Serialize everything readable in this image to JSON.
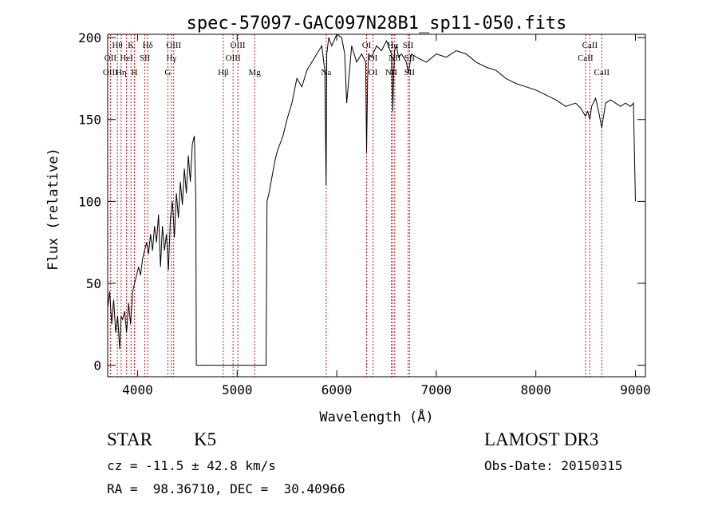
{
  "chart_data": {
    "type": "line",
    "title": "spec-57097-GAC097N28B1_sp11-050.fits",
    "xlabel": "Wavelength (Å)",
    "ylabel": "Flux (relative)",
    "xlim": [
      3700,
      9100
    ],
    "ylim": [
      -7,
      202
    ],
    "xticks": [
      4000,
      5000,
      6000,
      7000,
      8000,
      9000
    ],
    "yticks": [
      0,
      50,
      100,
      150,
      200
    ],
    "grid": false,
    "line_color": "#000000",
    "marker_color": "#cc0000",
    "series": [
      {
        "x": [
          3700,
          3720,
          3740,
          3760,
          3780,
          3800,
          3820,
          3835,
          3850,
          3870,
          3890,
          3910,
          3930,
          3950,
          3970,
          3990,
          4010,
          4030,
          4050,
          4070,
          4090,
          4110,
          4130,
          4150,
          4170,
          4190,
          4210,
          4230,
          4250,
          4270,
          4290,
          4310,
          4330,
          4350,
          4370,
          4390,
          4410,
          4430,
          4450,
          4470,
          4490,
          4510,
          4530,
          4550,
          4570,
          4585,
          4590,
          4600,
          4700,
          4800,
          4900,
          5000,
          5100,
          5200,
          5290,
          5300,
          5320,
          5350,
          5380,
          5400,
          5430,
          5460,
          5500,
          5550,
          5600,
          5650,
          5700,
          5750,
          5800,
          5850,
          5880,
          5894,
          5900,
          5920,
          5950,
          6000,
          6050,
          6080,
          6100,
          6150,
          6200,
          6250,
          6290,
          6300,
          6310,
          6320,
          6350,
          6400,
          6450,
          6500,
          6550,
          6563,
          6580,
          6600,
          6620,
          6650,
          6700,
          6720,
          6750,
          6800,
          6900,
          7000,
          7100,
          7200,
          7300,
          7400,
          7500,
          7600,
          7700,
          7800,
          7900,
          8000,
          8100,
          8200,
          8300,
          8400,
          8450,
          8498,
          8520,
          8542,
          8560,
          8600,
          8630,
          8662,
          8700,
          8750,
          8800,
          8850,
          8900,
          8950,
          8980,
          9000
        ],
        "y": [
          35,
          45,
          25,
          40,
          20,
          30,
          10,
          30,
          28,
          33,
          20,
          38,
          25,
          45,
          50,
          55,
          60,
          55,
          65,
          70,
          75,
          68,
          80,
          70,
          85,
          75,
          92,
          60,
          85,
          70,
          80,
          58,
          90,
          100,
          78,
          105,
          90,
          112,
          98,
          120,
          105,
          128,
          112,
          135,
          140,
          100,
          0,
          0,
          0,
          0,
          0,
          0,
          0,
          0,
          0,
          100,
          105,
          115,
          125,
          130,
          135,
          140,
          150,
          160,
          175,
          170,
          180,
          185,
          190,
          195,
          180,
          110,
          190,
          200,
          195,
          205,
          200,
          190,
          160,
          195,
          185,
          190,
          185,
          130,
          175,
          190,
          188,
          195,
          192,
          198,
          190,
          155,
          192,
          195,
          188,
          190,
          185,
          178,
          190,
          188,
          185,
          190,
          188,
          192,
          190,
          185,
          182,
          180,
          175,
          172,
          170,
          168,
          165,
          162,
          158,
          160,
          157,
          152,
          155,
          150,
          158,
          163,
          155,
          145,
          160,
          162,
          160,
          158,
          160,
          158,
          160,
          100
        ]
      }
    ],
    "line_markers": {
      "top": [
        {
          "label": "Hθ",
          "x": 3797
        },
        {
          "label": "K",
          "x": 3934
        },
        {
          "label": "Hδ",
          "x": 4102
        },
        {
          "label": "OIII",
          "x": 4363
        },
        {
          "label": "OIII",
          "x": 5007
        },
        {
          "label": "OI",
          "x": 6300
        },
        {
          "label": "Hα",
          "x": 6563
        },
        {
          "label": "SII",
          "x": 6717
        },
        {
          "label": "CaII",
          "x": 8542
        }
      ],
      "middle": [
        {
          "label": "OII",
          "x": 3727
        },
        {
          "label": "HeI",
          "x": 3889
        },
        {
          "label": "SII",
          "x": 4072
        },
        {
          "label": "Hγ",
          "x": 4340
        },
        {
          "label": "OIII",
          "x": 4959
        },
        {
          "label": "OI",
          "x": 6364
        },
        {
          "label": "NII",
          "x": 6583
        },
        {
          "label": "SII",
          "x": 6731
        },
        {
          "label": "CaII",
          "x": 8498
        }
      ],
      "bottom": [
        {
          "label": "OIII",
          "x": 3727
        },
        {
          "label": "Hη",
          "x": 3835
        },
        {
          "label": "H",
          "x": 3968
        },
        {
          "label": "G",
          "x": 4304
        },
        {
          "label": "Hβ",
          "x": 4861
        },
        {
          "label": "Mg",
          "x": 5175
        },
        {
          "label": "Na",
          "x": 5894
        },
        {
          "label": "OI",
          "x": 6364
        },
        {
          "label": "NII",
          "x": 6548
        },
        {
          "label": "SII",
          "x": 6731
        },
        {
          "label": "CaII",
          "x": 8662
        }
      ],
      "lines": [
        3727,
        3797,
        3835,
        3889,
        3934,
        3968,
        4072,
        4102,
        4304,
        4340,
        4363,
        4861,
        4959,
        5007,
        5175,
        5894,
        6300,
        6364,
        6548,
        6563,
        6583,
        6717,
        6731,
        8498,
        8542,
        8662
      ]
    }
  },
  "footer": {
    "object_class": "STAR",
    "subclass": "K5",
    "survey": "LAMOST DR3",
    "velocity": "cz = -11.5 ± 42.8 km/s",
    "obs_date": "Obs-Date: 20150315",
    "coords": "RA =  98.36710, DEC =  30.40966"
  }
}
